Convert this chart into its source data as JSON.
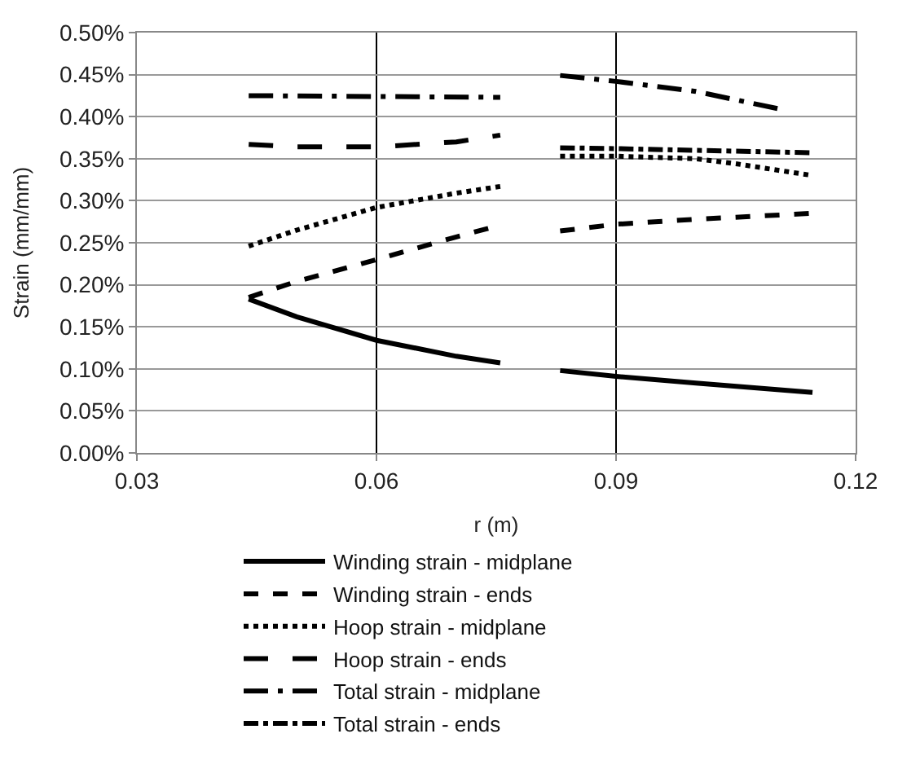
{
  "chart_data": {
    "type": "line",
    "xlabel": "r (m)",
    "ylabel": "Strain (mm/mm)",
    "xlim": [
      0.03,
      0.12
    ],
    "xticks": [
      0.03,
      0.06,
      0.09,
      0.12
    ],
    "ylim": [
      0,
      0.5
    ],
    "yticks": [
      {
        "value": 0,
        "label": "0.00%"
      },
      {
        "value": 0.05,
        "label": "0.05%"
      },
      {
        "value": 0.1,
        "label": "0.10%"
      },
      {
        "value": 0.15,
        "label": "0.15%"
      },
      {
        "value": 0.2,
        "label": "0.20%"
      },
      {
        "value": 0.25,
        "label": "0.25%"
      },
      {
        "value": 0.3,
        "label": "0.30%"
      },
      {
        "value": 0.35,
        "label": "0.35%"
      },
      {
        "value": 0.4,
        "label": "0.40%"
      },
      {
        "value": 0.45,
        "label": "0.45%"
      },
      {
        "value": 0.5,
        "label": "0.50%"
      }
    ],
    "grid": true,
    "legend": "bottom",
    "marker": "none",
    "series": [
      {
        "name": "Winding strain - midplane",
        "color": "#000000",
        "line_style": "solid",
        "x": [
          0.044,
          0.05,
          0.06,
          0.07,
          0.0755,
          0.079,
          0.083,
          0.09,
          0.1,
          0.1146
        ],
        "values": [
          0.183,
          0.162,
          0.134,
          0.115,
          0.107,
          null,
          0.098,
          0.091,
          0.083,
          0.072
        ]
      },
      {
        "name": "Winding strain - ends",
        "color": "#000000",
        "line_style": "dashed",
        "x": [
          0.044,
          0.05,
          0.06,
          0.07,
          0.0755,
          0.079,
          0.083,
          0.09,
          0.1,
          0.1146
        ],
        "values": [
          0.185,
          0.204,
          0.23,
          0.257,
          0.271,
          null,
          0.264,
          0.272,
          0.278,
          0.285
        ]
      },
      {
        "name": "Hoop strain - midplane",
        "color": "#000000",
        "line_style": "dotted",
        "x": [
          0.044,
          0.05,
          0.06,
          0.07,
          0.0755,
          0.079,
          0.083,
          0.09,
          0.1,
          0.105,
          0.1146
        ],
        "values": [
          0.246,
          0.265,
          0.292,
          0.309,
          0.317,
          null,
          0.353,
          0.353,
          0.35,
          0.344,
          0.33
        ]
      },
      {
        "name": "Hoop strain - ends",
        "color": "#000000",
        "line_style": "longdash",
        "x": [
          0.044,
          0.05,
          0.06,
          0.07,
          0.0755
        ],
        "values": [
          0.367,
          0.364,
          0.364,
          0.37,
          0.378
        ]
      },
      {
        "name": "Total strain - midplane",
        "color": "#000000",
        "line_style": "longdashdot",
        "x": [
          0.044,
          0.06,
          0.0755,
          0.079,
          0.083,
          0.09,
          0.1,
          0.111
        ],
        "values": [
          0.425,
          0.424,
          0.423,
          null,
          0.449,
          0.442,
          0.43,
          0.408
        ]
      },
      {
        "name": "Total strain - ends",
        "color": "#000000",
        "line_style": "dashdot",
        "x": [
          0.083,
          0.09,
          0.1146
        ],
        "values": [
          0.363,
          0.362,
          0.357
        ]
      }
    ]
  }
}
